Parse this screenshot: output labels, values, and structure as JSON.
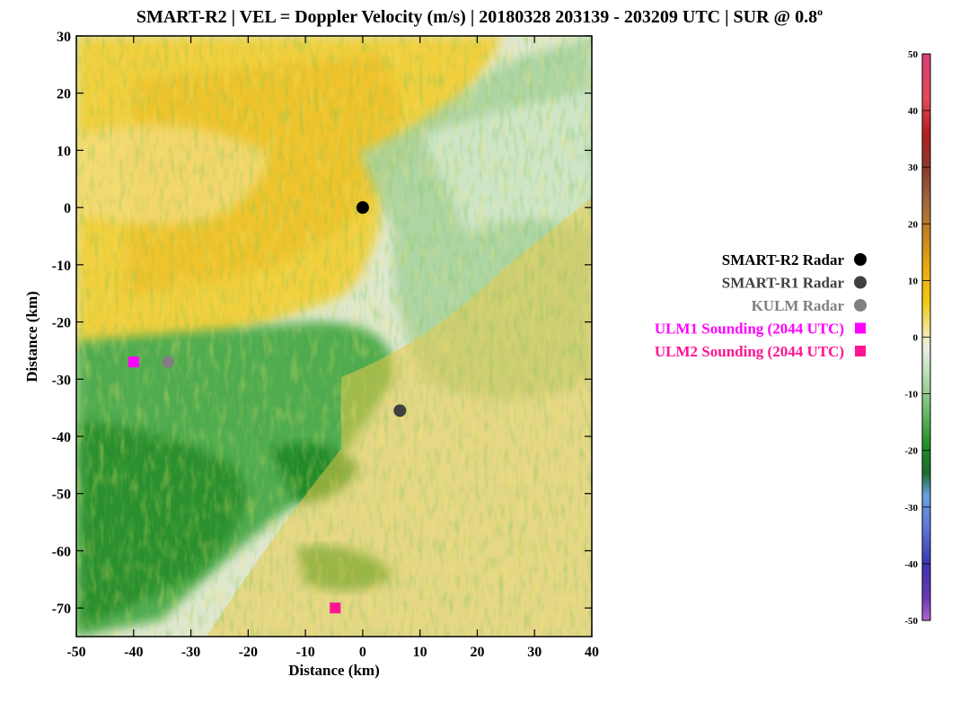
{
  "chart_data": {
    "type": "scatter",
    "title": "SMART-R2 | VEL = Doppler Velocity (m/s) | 20180328 203139 - 203209 UTC | SUR @ 0.8",
    "title_superscript": "o",
    "xlabel": "Distance (km)",
    "ylabel": "Distance (km)",
    "xlim": [
      -50,
      40
    ],
    "ylim": [
      -75,
      30
    ],
    "xticks": [
      "-50",
      "-40",
      "-30",
      "-20",
      "-10",
      "0",
      "10",
      "20",
      "30",
      "40"
    ],
    "yticks": [
      "30",
      "20",
      "10",
      "0",
      "-10",
      "-20",
      "-30",
      "-40",
      "-50",
      "-60",
      "-70"
    ],
    "background": "Doppler velocity PPI field (yellow = outbound, green = inbound)",
    "series": [
      {
        "name": "SMART-R2 Radar",
        "marker": "circle",
        "color": "#000000",
        "x": [
          0
        ],
        "y": [
          0
        ]
      },
      {
        "name": "SMART-R1 Radar",
        "marker": "circle",
        "color": "#404040",
        "x": [
          6.5
        ],
        "y": [
          -35.5
        ]
      },
      {
        "name": "KULM Radar",
        "marker": "circle",
        "color": "#808080",
        "x": [
          -34
        ],
        "y": [
          -27
        ]
      },
      {
        "name": "ULM1 Sounding (2044 UTC)",
        "marker": "square",
        "color": "#ff00ff",
        "x": [
          -40
        ],
        "y": [
          -27
        ]
      },
      {
        "name": "ULM2 Sounding (2044 UTC)",
        "marker": "square",
        "color": "#ff1493",
        "x": [
          -4.8
        ],
        "y": [
          -70
        ]
      }
    ],
    "legend_position": "right",
    "colorbar": {
      "range": [
        -50,
        50
      ],
      "ticks": [
        "50",
        "40",
        "30",
        "20",
        "10",
        "0",
        "-10",
        "-20",
        "-30",
        "-40",
        "-50"
      ]
    }
  }
}
